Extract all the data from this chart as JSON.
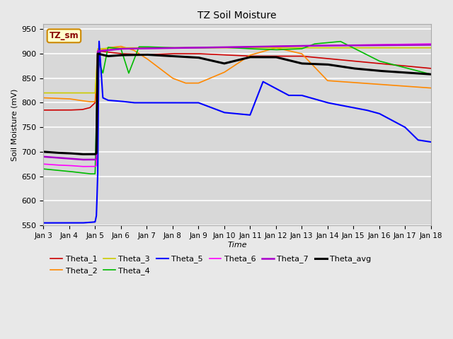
{
  "title": "TZ Soil Moisture",
  "xlabel": "Time",
  "ylabel": "Soil Moisture (mV)",
  "ylim": [
    550,
    960
  ],
  "yticks": [
    550,
    600,
    650,
    700,
    750,
    800,
    850,
    900,
    950
  ],
  "xlim": [
    0,
    15
  ],
  "xtick_labels": [
    "Jan 3",
    "Jan 4",
    "Jan 5",
    "Jan 6",
    "Jan 7",
    "Jan 8",
    "Jan 9",
    "Jan 10",
    "Jan 11",
    "Jan 12",
    "Jan 13",
    "Jan 14",
    "Jan 15",
    "Jan 16",
    "Jan 17",
    "Jan 18"
  ],
  "bg_color": "#d8d8d8",
  "fig_color": "#e8e8e8",
  "legend_label": "TZ_sm",
  "series_colors": {
    "Theta_1": "#cc0000",
    "Theta_2": "#ff8800",
    "Theta_3": "#cccc00",
    "Theta_4": "#00bb00",
    "Theta_5": "#0000ff",
    "Theta_6": "#ff00ff",
    "Theta_7": "#aa00cc",
    "Theta_avg": "#000000"
  },
  "line_widths": {
    "Theta_1": 1.2,
    "Theta_2": 1.2,
    "Theta_3": 1.2,
    "Theta_4": 1.2,
    "Theta_5": 1.5,
    "Theta_6": 1.2,
    "Theta_7": 1.8,
    "Theta_avg": 2.2
  }
}
